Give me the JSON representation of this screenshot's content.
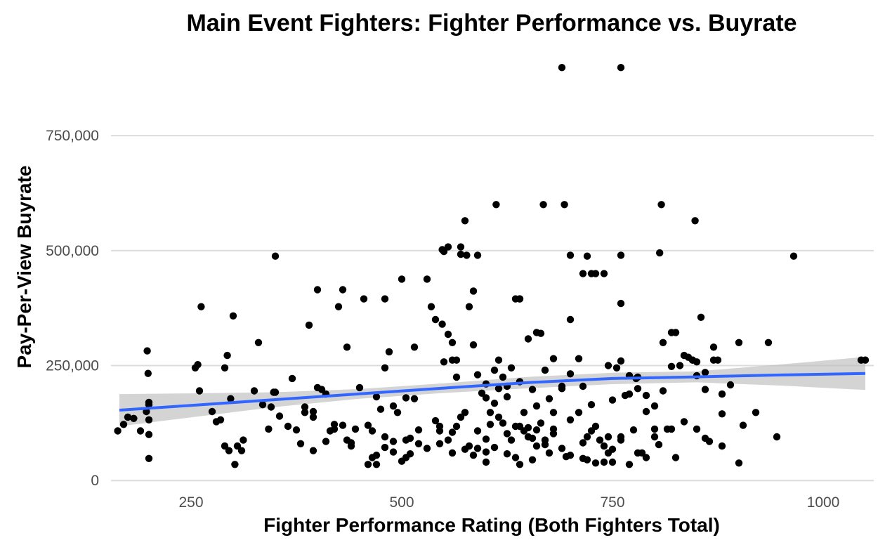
{
  "chart_data": {
    "type": "scatter",
    "title": "Main Event Fighters: Fighter Performance vs. Buyrate",
    "xlabel": "Fighter Performance Rating (Both Fighters Total)",
    "ylabel": "Pay-Per-View Buyrate",
    "xlim": [
      155,
      1060
    ],
    "ylim": [
      -18000,
      935000
    ],
    "x_ticks": [
      250,
      500,
      750,
      1000
    ],
    "x_tick_labels": [
      "250",
      "500",
      "750",
      "1000"
    ],
    "y_ticks": [
      0,
      250000,
      500000,
      750000
    ],
    "y_tick_labels": [
      "0",
      "250,000",
      "500,000",
      "750,000"
    ],
    "grid": "horizontal major only",
    "legend": "none",
    "colors": {
      "points": "#000000",
      "trend_line": "#3366ff",
      "confidence_band": "#bdbdbd"
    },
    "trend_line": {
      "method": "linear fit with confidence band",
      "x": [
        165,
        250,
        350,
        450,
        550,
        650,
        750,
        850,
        950,
        1050
      ],
      "y": [
        153000,
        163500,
        176000,
        188500,
        201000,
        213000,
        222000,
        225500,
        229500,
        233000
      ],
      "lower": [
        118000,
        137500,
        160000,
        178000,
        190500,
        200500,
        209500,
        213500,
        206500,
        197000
      ],
      "upper": [
        188000,
        189500,
        192000,
        199000,
        211500,
        225500,
        234500,
        237500,
        252500,
        269000
      ]
    },
    "points": {
      "x": [
        163,
        170,
        175,
        182,
        190,
        197,
        198,
        199,
        200,
        200,
        200,
        200,
        200,
        255,
        258,
        260,
        262,
        275,
        280,
        285,
        290,
        295,
        300,
        305,
        310,
        312,
        290,
        293,
        297,
        302,
        325,
        330,
        335,
        342,
        345,
        348,
        350,
        355,
        365,
        370,
        375,
        385,
        390,
        395,
        400,
        350,
        385,
        395,
        405,
        410,
        415,
        420,
        425,
        430,
        435,
        440,
        445,
        455,
        460,
        465,
        470,
        475,
        480,
        485,
        490,
        495,
        500,
        505,
        510,
        515,
        400,
        420,
        430,
        435,
        450,
        470,
        480,
        490,
        505,
        515,
        530,
        535,
        540,
        548,
        550,
        555,
        560,
        565,
        570,
        575,
        540,
        545,
        550,
        555,
        560,
        565,
        570,
        575,
        580,
        585,
        590,
        595,
        600,
        605,
        610,
        615,
        620,
        625,
        630,
        635,
        640,
        645,
        650,
        655,
        660,
        665,
        670,
        675,
        680,
        545,
        555,
        565,
        575,
        585,
        590,
        600,
        610,
        615,
        620,
        625,
        630,
        640,
        650,
        660,
        665,
        670,
        680,
        690,
        590,
        600,
        605,
        615,
        625,
        635,
        645,
        655,
        660,
        670,
        680,
        690,
        700,
        710,
        715,
        720,
        725,
        730,
        735,
        740,
        745,
        750,
        690,
        700,
        710,
        715,
        720,
        725,
        730,
        740,
        750,
        755,
        760,
        765,
        770,
        780,
        790,
        800,
        810,
        815,
        820,
        830,
        840,
        845,
        850,
        860,
        870,
        760,
        770,
        775,
        780,
        790,
        800,
        810,
        820,
        825,
        835,
        845,
        850,
        855,
        860,
        865,
        870,
        875,
        880,
        890,
        900,
        750,
        760,
        780,
        800,
        820,
        835,
        850,
        860,
        880,
        900,
        920,
        935,
        965,
        1045,
        1050,
        690,
        760,
        612,
        668,
        693,
        808,
        848,
        577,
        548,
        570,
        590,
        640,
        700,
        715,
        725,
        806,
        760,
        585,
        640,
        660,
        650,
        700,
        680,
        745,
        778,
        460,
        465,
        470,
        480,
        490,
        505,
        520,
        545,
        560,
        600,
        610,
        635,
        700,
        720,
        740,
        770,
        790,
        880,
        905,
        945,
        380,
        395,
        410,
        440,
        480,
        500,
        510,
        520,
        530,
        560,
        580,
        600,
        625,
        640,
        655,
        675,
        695,
        715,
        730,
        745,
        760,
        785,
        805,
        825
      ],
      "y": [
        108000,
        122000,
        138000,
        135000,
        108000,
        150000,
        282000,
        233000,
        170000,
        165000,
        132000,
        100000,
        48000,
        245000,
        252000,
        195000,
        378000,
        150000,
        128000,
        132000,
        75000,
        65000,
        358000,
        75000,
        65000,
        88000,
        245000,
        272000,
        178000,
        35000,
        195000,
        300000,
        165000,
        112000,
        160000,
        192000,
        488000,
        140000,
        118000,
        222000,
        110000,
        160000,
        338000,
        150000,
        202000,
        192000,
        148000,
        138000,
        198000,
        188000,
        108000,
        112000,
        378000,
        120000,
        290000,
        82000,
        112000,
        395000,
        120000,
        108000,
        35000,
        155000,
        245000,
        280000,
        162000,
        148000,
        438000,
        180000,
        58000,
        290000,
        415000,
        122000,
        415000,
        88000,
        202000,
        182000,
        395000,
        62000,
        88000,
        178000,
        438000,
        378000,
        350000,
        340000,
        498000,
        508000,
        262000,
        225000,
        508000,
        565000,
        130000,
        118000,
        258000,
        318000,
        300000,
        262000,
        138000,
        148000,
        378000,
        295000,
        230000,
        190000,
        210000,
        148000,
        168000,
        262000,
        125000,
        182000,
        245000,
        395000,
        215000,
        148000,
        115000,
        198000,
        162000,
        320000,
        240000,
        178000,
        148000,
        108000,
        88000,
        118000,
        68000,
        55000,
        108000,
        90000,
        240000,
        200000,
        225000,
        205000,
        88000,
        118000,
        95000,
        110000,
        125000,
        88000,
        102000,
        70000,
        70000,
        180000,
        122000,
        138000,
        102000,
        118000,
        108000,
        92000,
        75000,
        78000,
        112000,
        205000,
        132000,
        148000,
        82000,
        95000,
        108000,
        118000,
        88000,
        75000,
        95000,
        68000,
        200000,
        350000,
        265000,
        205000,
        488000,
        165000,
        450000,
        450000,
        175000,
        245000,
        260000,
        185000,
        228000,
        200000,
        150000,
        162000,
        195000,
        112000,
        248000,
        250000,
        268000,
        262000,
        228000,
        198000,
        262000,
        385000,
        188000,
        110000,
        225000,
        185000,
        112000,
        300000,
        322000,
        322000,
        272000,
        262000,
        258000,
        355000,
        235000,
        85000,
        290000,
        262000,
        188000,
        208000,
        300000,
        40000,
        88000,
        60000,
        95000,
        112000,
        128000,
        112000,
        92000,
        75000,
        38000,
        148000,
        300000,
        488000,
        262000,
        262000,
        898000,
        898000,
        600000,
        600000,
        600000,
        600000,
        565000,
        490000,
        502000,
        492000,
        490000,
        395000,
        490000,
        450000,
        450000,
        495000,
        490000,
        412000,
        395000,
        322000,
        308000,
        232000,
        265000,
        250000,
        222000,
        35000,
        50000,
        55000,
        72000,
        85000,
        50000,
        110000,
        80000,
        60000,
        40000,
        72000,
        50000,
        55000,
        45000,
        40000,
        35000,
        50000,
        145000,
        120000,
        95000,
        80000,
        65000,
        85000,
        75000,
        95000,
        42000,
        92000,
        80000,
        70000,
        105000,
        75000,
        62000,
        58000,
        35000,
        45000,
        60000,
        52000,
        48000,
        38000,
        60000,
        95000,
        60000,
        78000,
        50000
      ]
    }
  }
}
